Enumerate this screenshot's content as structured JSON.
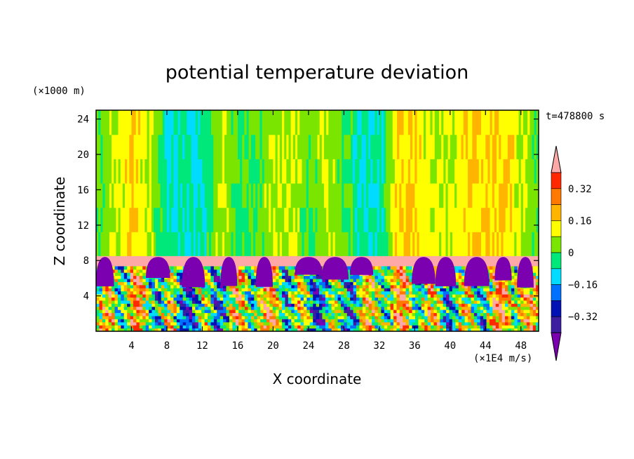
{
  "chart_data": {
    "type": "heatmap",
    "title": "potential temperature deviation",
    "xlabel": "X coordinate",
    "ylabel": "Z coordinate",
    "x_unit": "(×1E4 m/s)",
    "y_unit": "(×1000 m)",
    "time_label": "t=478800 s",
    "xlim": [
      0,
      50
    ],
    "ylim": [
      0,
      25
    ],
    "x_ticks": [
      4,
      8,
      12,
      16,
      20,
      24,
      28,
      32,
      36,
      40,
      44,
      48
    ],
    "y_ticks": [
      4,
      8,
      12,
      16,
      20,
      24
    ],
    "colorbar": {
      "levels": [
        -0.48,
        -0.4,
        -0.32,
        -0.24,
        -0.16,
        -0.08,
        0,
        0.08,
        0.16,
        0.24,
        0.32,
        0.4
      ],
      "tick_labels": [
        "0.32",
        "0.16",
        "0",
        "−0.16",
        "−0.32"
      ],
      "tick_values": [
        0.32,
        0.16,
        0,
        -0.16,
        -0.32
      ],
      "colors": [
        "#7a00b0",
        "#3c1fa0",
        "#0012b4",
        "#0070ff",
        "#00dcff",
        "#00e87a",
        "#7ae600",
        "#ffff00",
        "#ffb400",
        "#ff7800",
        "#ff2800",
        "#ffa8a8"
      ],
      "extend": "both"
    },
    "layers": [
      {
        "name": "upper layer",
        "z_range": [
          8.5,
          25
        ],
        "dominant_values": [
          0,
          0.08,
          -0.08,
          0.16
        ]
      },
      {
        "name": "inversion band",
        "z_range": [
          7.3,
          8.5
        ],
        "dominant_values": [
          0.4,
          -0.48
        ]
      },
      {
        "name": "convective layer",
        "z_range": [
          0,
          7.3
        ],
        "dominant_values": [
          -0.32,
          -0.16,
          0,
          0.16,
          0.32
        ]
      }
    ],
    "upper_structure": {
      "x": [
        0,
        2,
        4,
        6,
        8,
        10,
        12,
        14,
        16,
        18,
        20,
        22,
        24,
        26,
        28,
        30,
        32,
        34,
        36,
        38,
        40,
        42,
        44,
        46,
        48,
        50
      ],
      "value": [
        0,
        0.08,
        0.16,
        0.08,
        -0.08,
        -0.08,
        -0.08,
        0.08,
        0,
        0,
        0.08,
        0.08,
        0,
        0.08,
        0,
        -0.08,
        -0.08,
        0.16,
        0.16,
        0.08,
        0.08,
        0.16,
        0.16,
        0.16,
        0.08,
        0
      ]
    }
  }
}
